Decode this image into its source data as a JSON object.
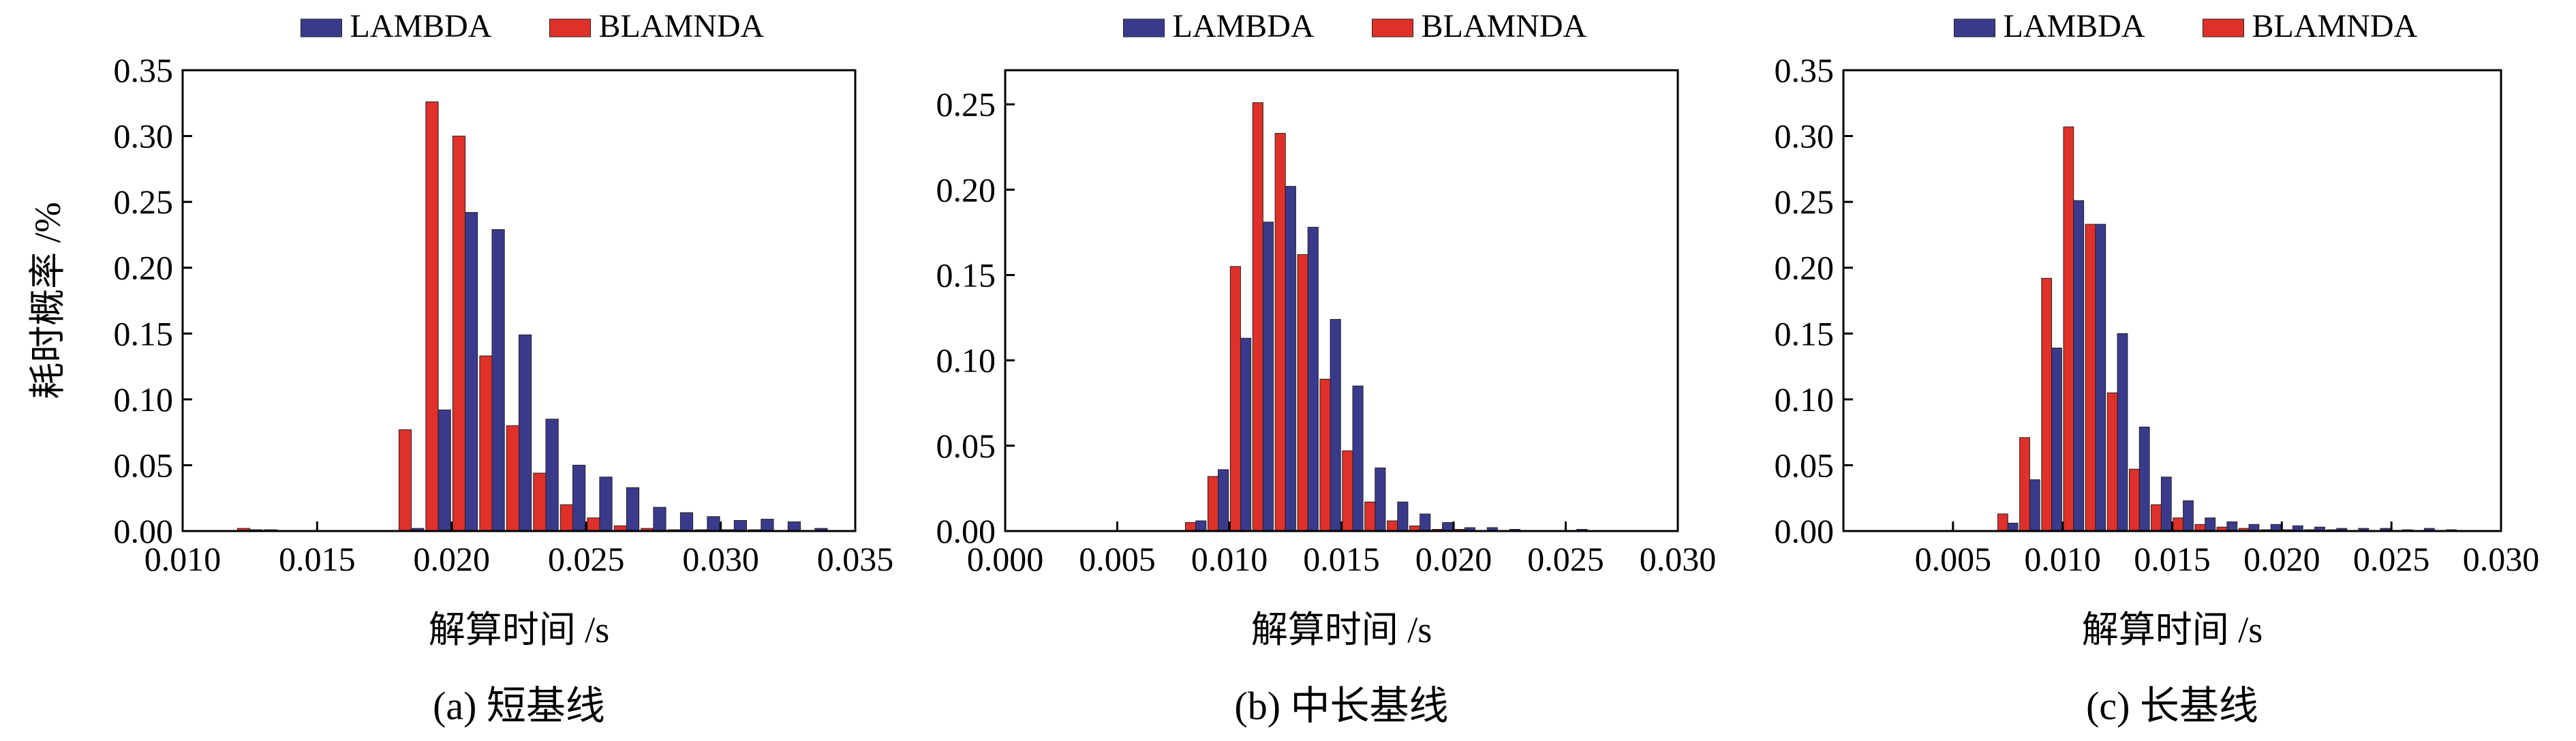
{
  "figure": {
    "colors": {
      "LAMBDA": "#3a3a8c",
      "BLAMNDA": "#e0302a"
    }
  },
  "chart_data": [
    {
      "type": "bar",
      "caption": "(a) 短基线",
      "xlabel": "解算时间 /s",
      "ylabel": "耗时概率 /%",
      "xlim": [
        0.01,
        0.035
      ],
      "ylim": [
        0.0,
        0.35
      ],
      "xticks": [
        0.01,
        0.015,
        0.02,
        0.025,
        0.03,
        0.035
      ],
      "xtick_labels": [
        "0.010",
        "0.015",
        "0.020",
        "0.025",
        "0.030",
        "0.035"
      ],
      "yticks": [
        0.0,
        0.05,
        0.1,
        0.15,
        0.2,
        0.25,
        0.3,
        0.35
      ],
      "ytick_labels": [
        "0.00",
        "0.05",
        "0.10",
        "0.15",
        "0.20",
        "0.25",
        "0.30",
        "0.35"
      ],
      "legend": "top-center",
      "grid": false,
      "bin_width": 0.001,
      "bins": [
        0.0125,
        0.0135,
        0.0185,
        0.0195,
        0.0205,
        0.0215,
        0.0225,
        0.0235,
        0.0245,
        0.0255,
        0.0265,
        0.0275,
        0.0285,
        0.0295,
        0.0305,
        0.0315,
        0.0325,
        0.0335
      ],
      "series": [
        {
          "name": "BLAMNDA",
          "values": [
            0.002,
            0.001,
            0.077,
            0.326,
            0.3,
            0.133,
            0.08,
            0.044,
            0.02,
            0.01,
            0.004,
            0.002,
            0.001,
            0.001,
            0.001,
            0.001,
            0.0,
            0.0
          ]
        },
        {
          "name": "LAMBDA",
          "values": [
            0.001,
            0.0,
            0.002,
            0.092,
            0.242,
            0.229,
            0.149,
            0.085,
            0.05,
            0.041,
            0.033,
            0.018,
            0.014,
            0.011,
            0.008,
            0.009,
            0.007,
            0.002
          ]
        }
      ]
    },
    {
      "type": "bar",
      "caption": "(b) 中长基线",
      "xlabel": "解算时间 /s",
      "ylabel": "",
      "xlim": [
        0.0,
        0.03
      ],
      "ylim": [
        0.0,
        0.27
      ],
      "xticks": [
        0.0,
        0.005,
        0.01,
        0.015,
        0.02,
        0.025,
        0.03
      ],
      "xtick_labels": [
        "0.000",
        "0.005",
        "0.010",
        "0.015",
        "0.020",
        "0.025",
        "0.030"
      ],
      "yticks": [
        0.0,
        0.05,
        0.1,
        0.15,
        0.2,
        0.25
      ],
      "ytick_labels": [
        "0.00",
        "0.05",
        "0.10",
        "0.15",
        "0.20",
        "0.25"
      ],
      "legend": "top-center",
      "grid": false,
      "bin_width": 0.001,
      "bins": [
        0.0085,
        0.0095,
        0.0105,
        0.0115,
        0.0125,
        0.0135,
        0.0145,
        0.0155,
        0.0165,
        0.0175,
        0.0185,
        0.0195,
        0.0205,
        0.0215,
        0.0225,
        0.0255
      ],
      "series": [
        {
          "name": "BLAMNDA",
          "values": [
            0.005,
            0.032,
            0.155,
            0.251,
            0.233,
            0.162,
            0.089,
            0.047,
            0.017,
            0.006,
            0.003,
            0.001,
            0.001,
            0.0,
            0.0,
            0.0
          ]
        },
        {
          "name": "LAMBDA",
          "values": [
            0.006,
            0.036,
            0.113,
            0.181,
            0.202,
            0.178,
            0.124,
            0.085,
            0.037,
            0.017,
            0.01,
            0.005,
            0.002,
            0.002,
            0.001,
            0.001
          ]
        }
      ]
    },
    {
      "type": "bar",
      "caption": "(c) 长基线",
      "xlabel": "解算时间 /s",
      "ylabel": "",
      "xlim": [
        0.0,
        0.03
      ],
      "ylim": [
        0.0,
        0.35
      ],
      "xticks": [
        0.005,
        0.01,
        0.015,
        0.02,
        0.025,
        0.03
      ],
      "xtick_labels": [
        "0.005",
        "0.010",
        "0.015",
        "0.020",
        "0.025",
        "0.030"
      ],
      "yticks": [
        0.0,
        0.05,
        0.1,
        0.15,
        0.2,
        0.25,
        0.3,
        0.35
      ],
      "ytick_labels": [
        "0.00",
        "0.05",
        "0.10",
        "0.15",
        "0.20",
        "0.25",
        "0.30",
        "0.35"
      ],
      "legend": "top-center",
      "grid": false,
      "bin_width": 0.001,
      "bins": [
        0.0075,
        0.0085,
        0.0095,
        0.0105,
        0.0115,
        0.0125,
        0.0135,
        0.0145,
        0.0155,
        0.0165,
        0.0175,
        0.0185,
        0.0195,
        0.0205,
        0.0215,
        0.0225,
        0.0235,
        0.0245,
        0.0255,
        0.0265,
        0.0275
      ],
      "series": [
        {
          "name": "BLAMNDA",
          "values": [
            0.013,
            0.071,
            0.192,
            0.307,
            0.233,
            0.105,
            0.047,
            0.02,
            0.01,
            0.005,
            0.003,
            0.002,
            0.001,
            0.001,
            0.001,
            0.001,
            0.0,
            0.0,
            0.0,
            0.0,
            0.0
          ]
        },
        {
          "name": "LAMBDA",
          "values": [
            0.006,
            0.039,
            0.139,
            0.251,
            0.233,
            0.15,
            0.079,
            0.041,
            0.023,
            0.01,
            0.007,
            0.005,
            0.005,
            0.004,
            0.003,
            0.002,
            0.002,
            0.002,
            0.001,
            0.002,
            0.001
          ]
        }
      ]
    }
  ]
}
